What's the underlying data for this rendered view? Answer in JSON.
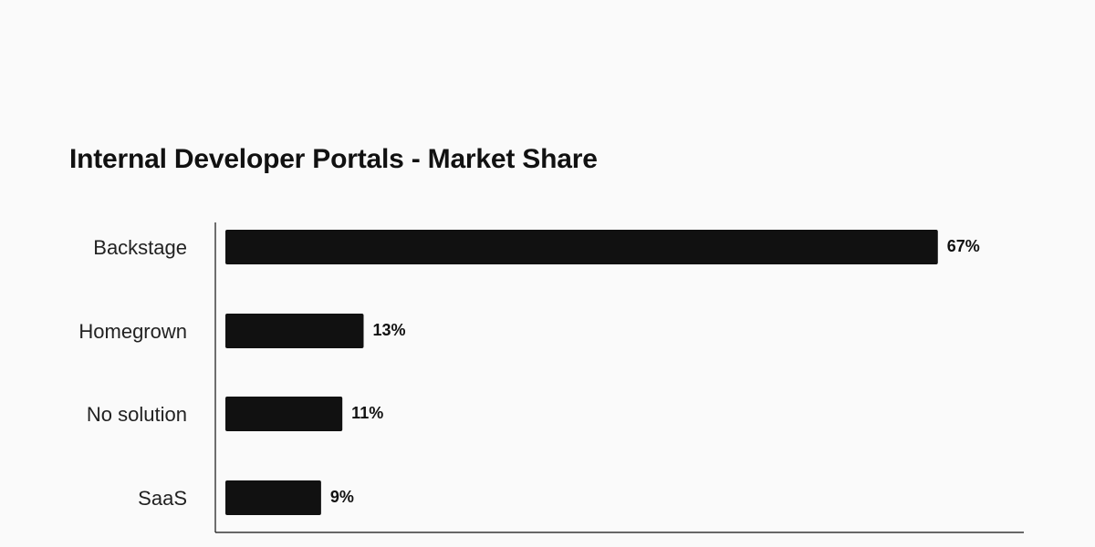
{
  "chart_data": {
    "type": "bar",
    "orientation": "horizontal",
    "title": "Internal Developer Portals - Market Share",
    "categories": [
      "Backstage",
      "Homegrown",
      "No solution",
      "SaaS"
    ],
    "values": [
      67,
      13,
      11,
      9
    ],
    "value_labels": [
      "67%",
      "13%",
      "11%",
      "9%"
    ],
    "xlim": [
      0,
      75
    ],
    "grid": false,
    "legend": "none",
    "bar_color": "#111111",
    "axis_color": "#111111"
  }
}
